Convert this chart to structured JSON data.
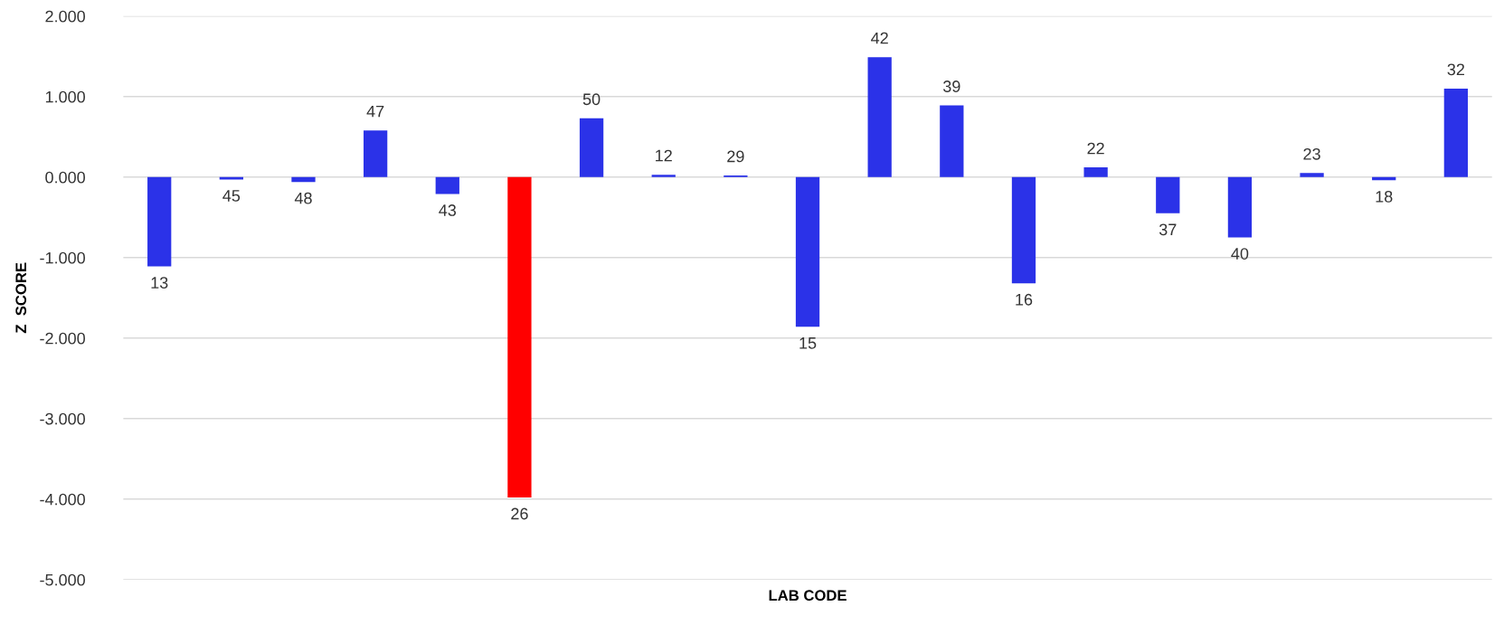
{
  "chart_data": {
    "type": "bar",
    "xlabel": "LAB CODE",
    "ylabel": "Z  SCORE",
    "categories": [
      "13",
      "45",
      "48",
      "47",
      "43",
      "26",
      "50",
      "12",
      "29",
      "15",
      "42",
      "39",
      "16",
      "22",
      "37",
      "40",
      "23",
      "18",
      "32"
    ],
    "values": [
      -1.11,
      -0.03,
      -0.06,
      0.58,
      -0.21,
      -3.98,
      0.73,
      0.03,
      0.02,
      -1.86,
      1.49,
      0.89,
      -1.32,
      0.12,
      -0.45,
      -0.75,
      0.05,
      -0.04,
      1.1
    ],
    "colors": [
      "#2b32e8",
      "#2b32e8",
      "#2b32e8",
      "#2b32e8",
      "#2b32e8",
      "#ff0000",
      "#2b32e8",
      "#2b32e8",
      "#2b32e8",
      "#2b32e8",
      "#2b32e8",
      "#2b32e8",
      "#2b32e8",
      "#2b32e8",
      "#2b32e8",
      "#2b32e8",
      "#2b32e8",
      "#2b32e8",
      "#2b32e8"
    ],
    "ylim": [
      -5,
      2
    ],
    "yticks": [
      {
        "value": 2,
        "label": "2.000"
      },
      {
        "value": 1,
        "label": "1.000"
      },
      {
        "value": 0,
        "label": "0.000"
      },
      {
        "value": -1,
        "label": "-1.000"
      },
      {
        "value": -2,
        "label": "-2.000"
      },
      {
        "value": -3,
        "label": "-3.000"
      },
      {
        "value": -4,
        "label": "-4.000"
      },
      {
        "value": -5,
        "label": "-5.000"
      }
    ],
    "grid": "y"
  }
}
